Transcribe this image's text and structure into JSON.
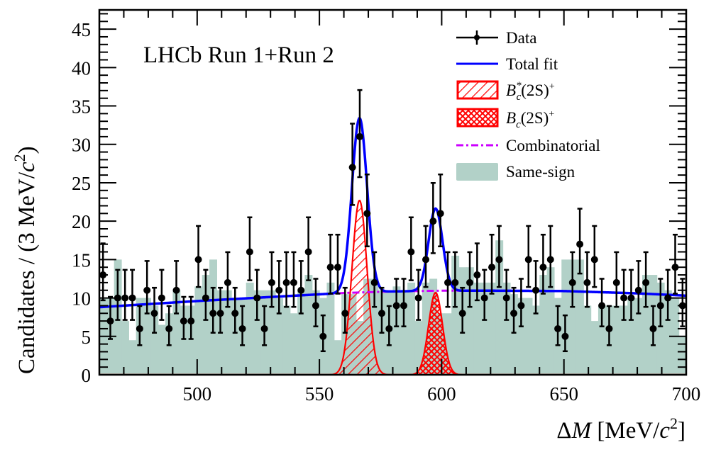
{
  "chart_data": {
    "type": "histogram-fit",
    "title": "LHCb Run 1+Run 2",
    "xlabel": "ΔM [MeV/c²]",
    "xlabel_parts": {
      "delta": "Δ",
      "var": "M",
      "unit_open": " [MeV/",
      "unit_c": "c",
      "unit_sup": "2",
      "unit_close": "]"
    },
    "ylabel": "Candidates / (3 MeV/c²)",
    "ylabel_parts": {
      "main": "Candidates / (3 MeV/",
      "c": "c",
      "sup": "2",
      "close": ")"
    },
    "xlim": [
      460,
      700
    ],
    "ylim": [
      0,
      47.5
    ],
    "bin_width": 3,
    "xticks": [
      500,
      550,
      600,
      650,
      700
    ],
    "yticks": [
      0,
      5,
      10,
      15,
      20,
      25,
      30,
      35,
      40,
      45
    ],
    "legend": {
      "position": "top-right",
      "entries": [
        {
          "key": "data",
          "label": "Data"
        },
        {
          "key": "total",
          "label": "Total fit"
        },
        {
          "key": "bcstar",
          "label_base": "B",
          "label_sub": "c",
          "label_sup": "*",
          "label_rest": "(2S)",
          "label_charge": "+",
          "label": "B_c^*(2S)^+"
        },
        {
          "key": "bc",
          "label_base": "B",
          "label_sub": "c",
          "label_sup": "",
          "label_rest": "(2S)",
          "label_charge": "+",
          "label": "B_c(2S)^+"
        },
        {
          "key": "comb",
          "label": "Combinatorial"
        },
        {
          "key": "ss",
          "label": "Same-sign"
        }
      ]
    },
    "colors": {
      "data": "#000000",
      "total_fit": "#0000ff",
      "signal": "#ff0000",
      "combinatorial": "#cc00ff",
      "same_sign": "#b2d1c8"
    },
    "data_points": {
      "x_centers_start": 461.5,
      "y": [
        13,
        7,
        10,
        10,
        10,
        6,
        11,
        8,
        10,
        6,
        11,
        7,
        7,
        15,
        10,
        8,
        8,
        12,
        8,
        6,
        16,
        10,
        6,
        12,
        11,
        12,
        12,
        11,
        16,
        9,
        5,
        14,
        14,
        8,
        27,
        31,
        21,
        12,
        8,
        6,
        9,
        9,
        16,
        10,
        15,
        20,
        21,
        12,
        12,
        8,
        12,
        13,
        10,
        14,
        15,
        10,
        8,
        9,
        15,
        11,
        14,
        15,
        6,
        5,
        12,
        17,
        12,
        15,
        9,
        6,
        12,
        10,
        10,
        11,
        12,
        6,
        9,
        10,
        14,
        9
      ]
    },
    "same_sign_hist": {
      "x_start": 460,
      "y": [
        10,
        10,
        15,
        7,
        4.5,
        10,
        10,
        9,
        6.5,
        8,
        11,
        9,
        9,
        11.5,
        13,
        15,
        11,
        11,
        10,
        10,
        12,
        11,
        11,
        11,
        10,
        9,
        8,
        11,
        13,
        11,
        10,
        12,
        4.5,
        10.5,
        10.5,
        7,
        12.5,
        12.5,
        11,
        11,
        11.5,
        11,
        12,
        7,
        12,
        12.5,
        8,
        8,
        15.5,
        14,
        14,
        12,
        12,
        12,
        17.5,
        12,
        10.5,
        10,
        10,
        9,
        13,
        14,
        10,
        15,
        15,
        15,
        9,
        7,
        9,
        9,
        9,
        9,
        10,
        10,
        13,
        13,
        12,
        11,
        10,
        5
      ]
    },
    "fit_components": {
      "combinatorial": {
        "x": [
          460,
          500,
          540,
          560,
          580,
          600,
          620,
          650,
          680,
          700
        ],
        "y": [
          8.8,
          9.6,
          10.3,
          10.65,
          10.85,
          10.95,
          10.95,
          10.9,
          10.6,
          10.3
        ]
      },
      "bcstar_2s": {
        "mean": 566.4,
        "sigma": 3.1,
        "peak": 22.7
      },
      "bc_2s": {
        "mean": 597.5,
        "sigma": 2.85,
        "peak": 10.7
      }
    }
  }
}
